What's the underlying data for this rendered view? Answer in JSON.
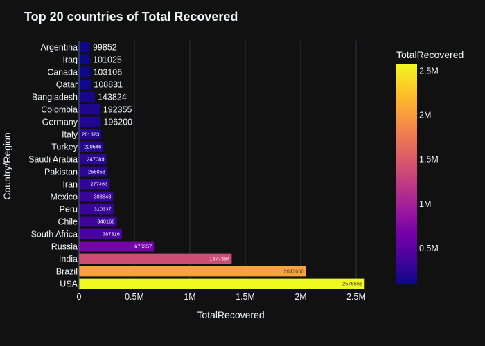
{
  "chart_data": {
    "type": "bar",
    "orientation": "horizontal",
    "title": "Top 20 countries of Total Recovered",
    "xlabel": "TotalRecovered",
    "ylabel": "Country/Region",
    "xlim": [
      0,
      2700000
    ],
    "x_ticks": [
      0,
      500000,
      1000000,
      1500000,
      2000000,
      2500000
    ],
    "x_tick_labels": [
      "0",
      "0.5M",
      "1M",
      "1.5M",
      "2M",
      "2.5M"
    ],
    "grid": true,
    "categories": [
      "Argentina",
      "Iraq",
      "Canada",
      "Qatar",
      "Bangladesh",
      "Colombia",
      "Germany",
      "Italy",
      "Turkey",
      "Saudi Arabia",
      "Pakistan",
      "Iran",
      "Mexico",
      "Peru",
      "Chile",
      "South Africa",
      "Russia",
      "India",
      "Brazil",
      "USA"
    ],
    "values": [
      99852,
      101025,
      103106,
      108831,
      143824,
      192355,
      196200,
      201323,
      220546,
      247089,
      256058,
      277463,
      308848,
      310337,
      340168,
      387316,
      676357,
      1377384,
      2047660,
      2576668
    ],
    "colorbar": {
      "title": "TotalRecovered",
      "range": [
        99852,
        2576668
      ],
      "ticks": [
        500000,
        1000000,
        1500000,
        2000000,
        2500000
      ],
      "tick_labels": [
        "0.5M",
        "1M",
        "1.5M",
        "2M",
        "2.5M"
      ],
      "colorscale": "Plasma"
    }
  }
}
